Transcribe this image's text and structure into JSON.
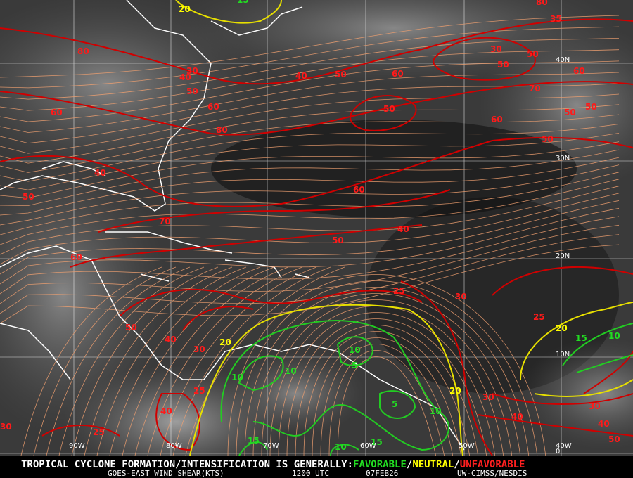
{
  "map": {
    "lat_labels": [
      "40N",
      "30N",
      "20N",
      "10N",
      "0"
    ],
    "lon_labels": [
      "90W",
      "80W",
      "70W",
      "60W",
      "50W",
      "40W"
    ],
    "contour_labels": {
      "red": [
        80,
        35,
        80,
        60,
        40,
        50,
        70,
        60,
        50,
        40,
        30,
        25,
        40,
        25,
        30,
        30,
        40,
        50,
        60,
        80,
        40,
        50,
        60,
        50,
        60,
        40,
        50,
        30,
        50,
        50,
        60,
        70,
        50,
        50,
        60,
        50,
        25,
        30,
        25,
        30,
        30,
        40,
        40,
        50
      ],
      "yellow": [
        20,
        20,
        20,
        20
      ],
      "green": [
        15,
        10,
        15,
        10,
        10,
        10,
        5,
        10,
        15,
        10,
        15,
        5
      ]
    }
  },
  "footer": {
    "headline": "TROPICAL CYCLONE FORMATION/INTENSIFICATION IS GENERALLY:",
    "favorable": "FAVORABLE",
    "slash_1": "/",
    "neutral": "NEUTRAL",
    "slash_2": "/",
    "unfavorable": "UNFAVORABLE",
    "product": "GOES-EAST WIND SHEAR(KTS)",
    "time": "1200 UTC",
    "date": "07FEB26",
    "source": "UW-CIMSS/NESDIS"
  }
}
